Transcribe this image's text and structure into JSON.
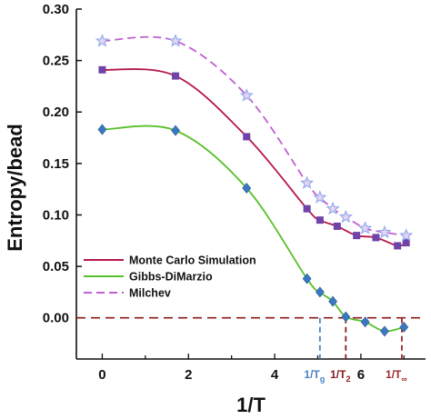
{
  "chart_data": {
    "type": "line",
    "xlabel": "1/T",
    "ylabel": "Entropy/bead",
    "xlim": [
      -0.6,
      7.5
    ],
    "ylim": [
      -0.04,
      0.3
    ],
    "x_ticks": [
      "0",
      "2",
      "4",
      "6"
    ],
    "y_ticks": [
      "0.00",
      "0.05",
      "0.10",
      "0.15",
      "0.20",
      "0.25",
      "0.30"
    ],
    "grid": false,
    "legend_position": "bottom-left",
    "colors": {
      "monte_carlo_line": "#b5174a",
      "monte_carlo_marker": "#6f43a8",
      "gibbs_line": "#58c02c",
      "gibbs_marker": "#3a78c2",
      "milchev_line": "#c15fd3",
      "milchev_marker": "#8fa8ee",
      "zero_line": "#8b1a1a",
      "tg_marker": "#4b82c6",
      "t2_marker": "#8b1a1a",
      "tinf_marker": "#9b2a2a"
    },
    "series": [
      {
        "name": "Monte Carlo Simulation",
        "marker": "square",
        "x": [
          0,
          1.7,
          3.35,
          4.75,
          5.05,
          5.45,
          5.9,
          6.35,
          6.85,
          7.05
        ],
        "y": [
          0.241,
          0.235,
          0.176,
          0.106,
          0.095,
          0.089,
          0.08,
          0.078,
          0.07,
          0.073
        ]
      },
      {
        "name": "Gibbs-DiMarzio",
        "marker": "diamond",
        "x": [
          0,
          1.7,
          3.35,
          4.75,
          5.05,
          5.35,
          5.65,
          6.1,
          6.55,
          7.0
        ],
        "y": [
          0.183,
          0.182,
          0.126,
          0.038,
          0.025,
          0.016,
          0.001,
          -0.004,
          -0.013,
          -0.009
        ]
      },
      {
        "name": "Milchev",
        "marker": "star",
        "x": [
          0,
          1.7,
          3.35,
          4.75,
          5.05,
          5.35,
          5.65,
          6.1,
          6.55,
          7.05
        ],
        "y": [
          0.269,
          0.269,
          0.216,
          0.131,
          0.117,
          0.106,
          0.098,
          0.087,
          0.083,
          0.08
        ]
      }
    ],
    "reference_markers": [
      {
        "label": "1/T",
        "subscript": "g",
        "x": 5.05
      },
      {
        "label": "1/T",
        "subscript": "2",
        "x": 5.65
      },
      {
        "label": "1/T",
        "subscript": "∞",
        "x": 6.95
      }
    ]
  }
}
